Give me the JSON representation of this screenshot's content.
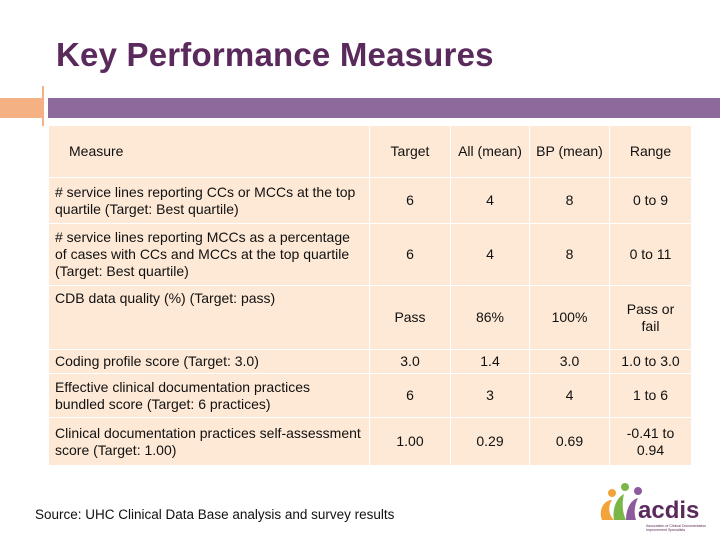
{
  "slide": {
    "title": "Key Performance Measures"
  },
  "table": {
    "headers": {
      "measure": "Measure",
      "target": "Target",
      "all": "All (mean)",
      "bp": "BP (mean)",
      "range": "Range"
    },
    "rows": [
      {
        "measure": "# service lines reporting CCs or MCCs at the top quartile (Target: Best quartile)",
        "target": "6",
        "all": "4",
        "bp": "8",
        "range": "0 to 9"
      },
      {
        "measure": "# service lines reporting MCCs as a percentage of cases with CCs and MCCs at the top quartile (Target: Best quartile)",
        "target": "6",
        "all": "4",
        "bp": "8",
        "range": "0 to 11"
      },
      {
        "measure": "CDB data quality (%) (Target: pass)",
        "target": "Pass",
        "all": "86%",
        "bp": "100%",
        "range": "Pass or fail"
      },
      {
        "measure": "Coding profile score (Target: 3.0)",
        "target": "3.0",
        "all": "1.4",
        "bp": "3.0",
        "range": "1.0 to 3.0"
      },
      {
        "measure": "Effective clinical documentation practices bundled score (Target: 6 practices)",
        "target": "6",
        "all": "3",
        "bp": "4",
        "range": "1 to 6"
      },
      {
        "measure": "Clinical documentation practices self-assessment score (Target: 1.00)",
        "target": "1.00",
        "all": "0.29",
        "bp": "0.69",
        "range": "-0.41 to 0.94"
      }
    ]
  },
  "footer": {
    "source": "Source: UHC Clinical Data Base analysis and survey results",
    "logo_text": "acdis",
    "logo_subtext": "Association of Clinical Documentation Improvement Specialists"
  },
  "colors": {
    "title": "#5a2a5c",
    "accent_orange": "#f4b183",
    "accent_purple": "#8e6a9c",
    "table_fill": "#fde9d6"
  }
}
